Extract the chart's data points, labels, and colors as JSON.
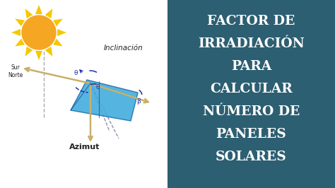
{
  "left_bg": "#ffffff",
  "right_bg": "#2d5f72",
  "title_lines": [
    "FACTOR DE",
    "IRRADIACIÓN",
    "PARA",
    "CALCULAR",
    "NÚMERO DE",
    "PANELES",
    "SOLARES"
  ],
  "title_color": "#ffffff",
  "title_fontsize": 13.5,
  "sun_color": "#f5a623",
  "sun_ray_color": "#f5c800",
  "panel_color": "#3eaadd",
  "panel_edge_color": "#1a6fa8",
  "label_inclinacion": "Inclinación",
  "label_azimut": "Azimut",
  "label_sur_norte": "Sur\nNorte",
  "label_color": "#222222",
  "arrow_color_tan": "#c8b068",
  "arrow_color_blue": "#1a3a8a",
  "angle_color": "#1a2faa"
}
